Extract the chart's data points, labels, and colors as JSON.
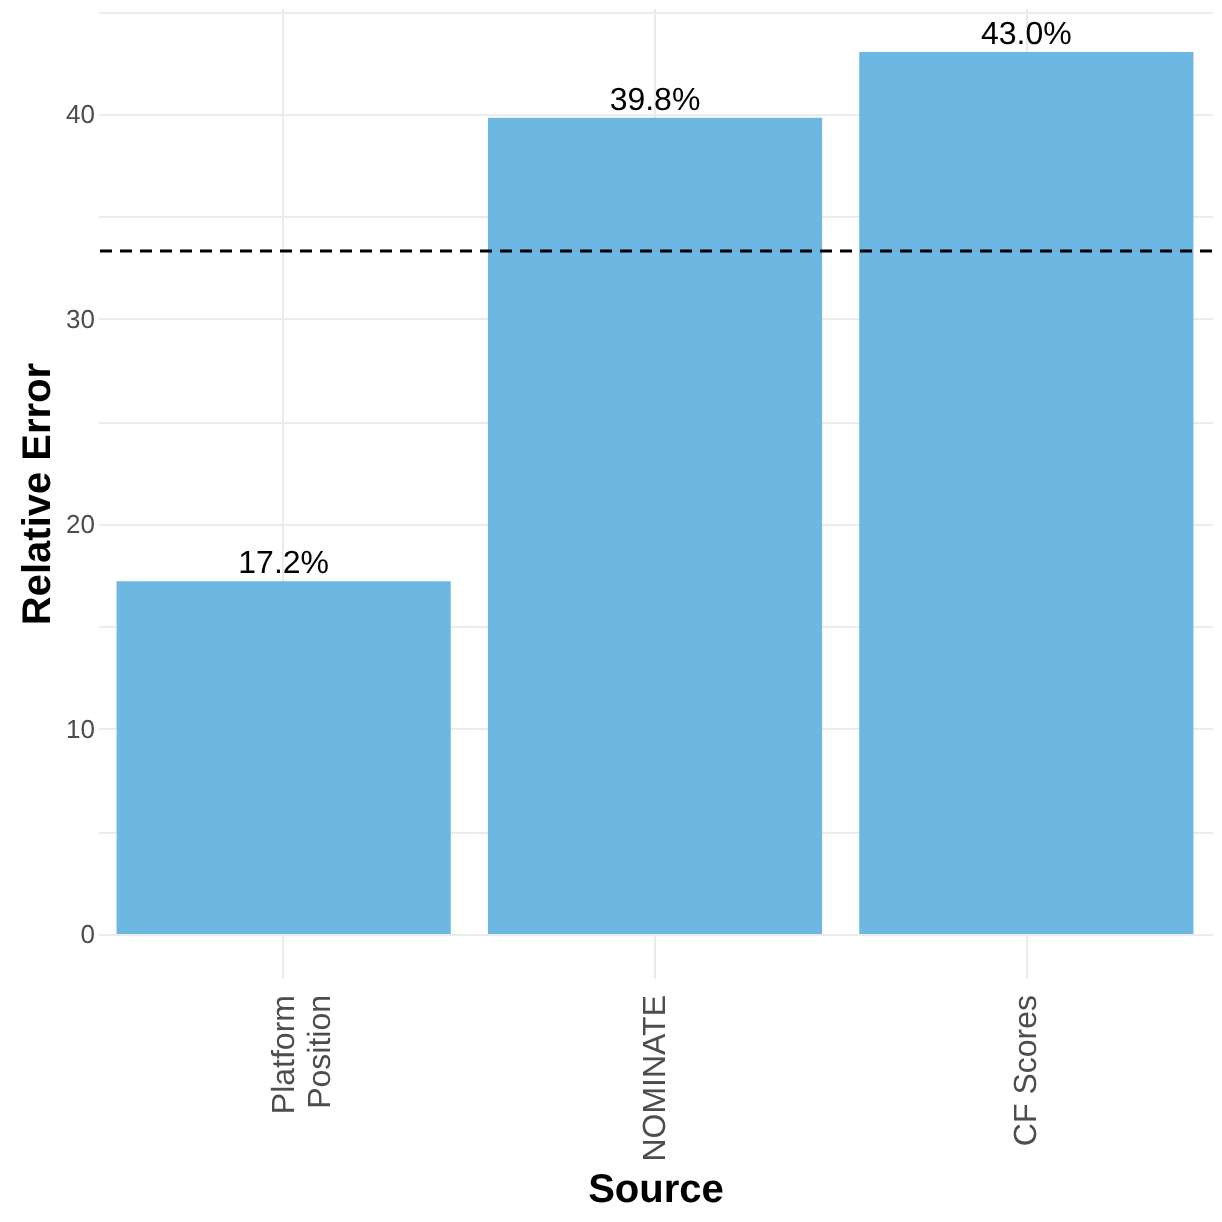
{
  "chart_data": {
    "type": "bar",
    "xlabel": "Source",
    "ylabel": "Relative Error",
    "categories": [
      "Platform\nPosition",
      "NOMINATE",
      "CF Scores"
    ],
    "values": [
      17.2,
      39.8,
      43.0
    ],
    "color": "#6db8e2",
    "value_labels": [
      "17.2%",
      "39.8%",
      "43.0%"
    ],
    "ylim": [
      -2.15,
      45.15
    ],
    "yticks": [
      0,
      {
        "value": 5,
        "label": null
      },
      10,
      {
        "value": 15,
        "label": null
      },
      20,
      {
        "value": 25,
        "label": null
      },
      30,
      {
        "value": 35,
        "label": null
      },
      40,
      {
        "value": 45,
        "label": null
      }
    ],
    "ref_lines": [
      {
        "axis": "y",
        "value": 33.3,
        "color": "#000000",
        "line_style": "dashed"
      }
    ],
    "grid": true
  }
}
